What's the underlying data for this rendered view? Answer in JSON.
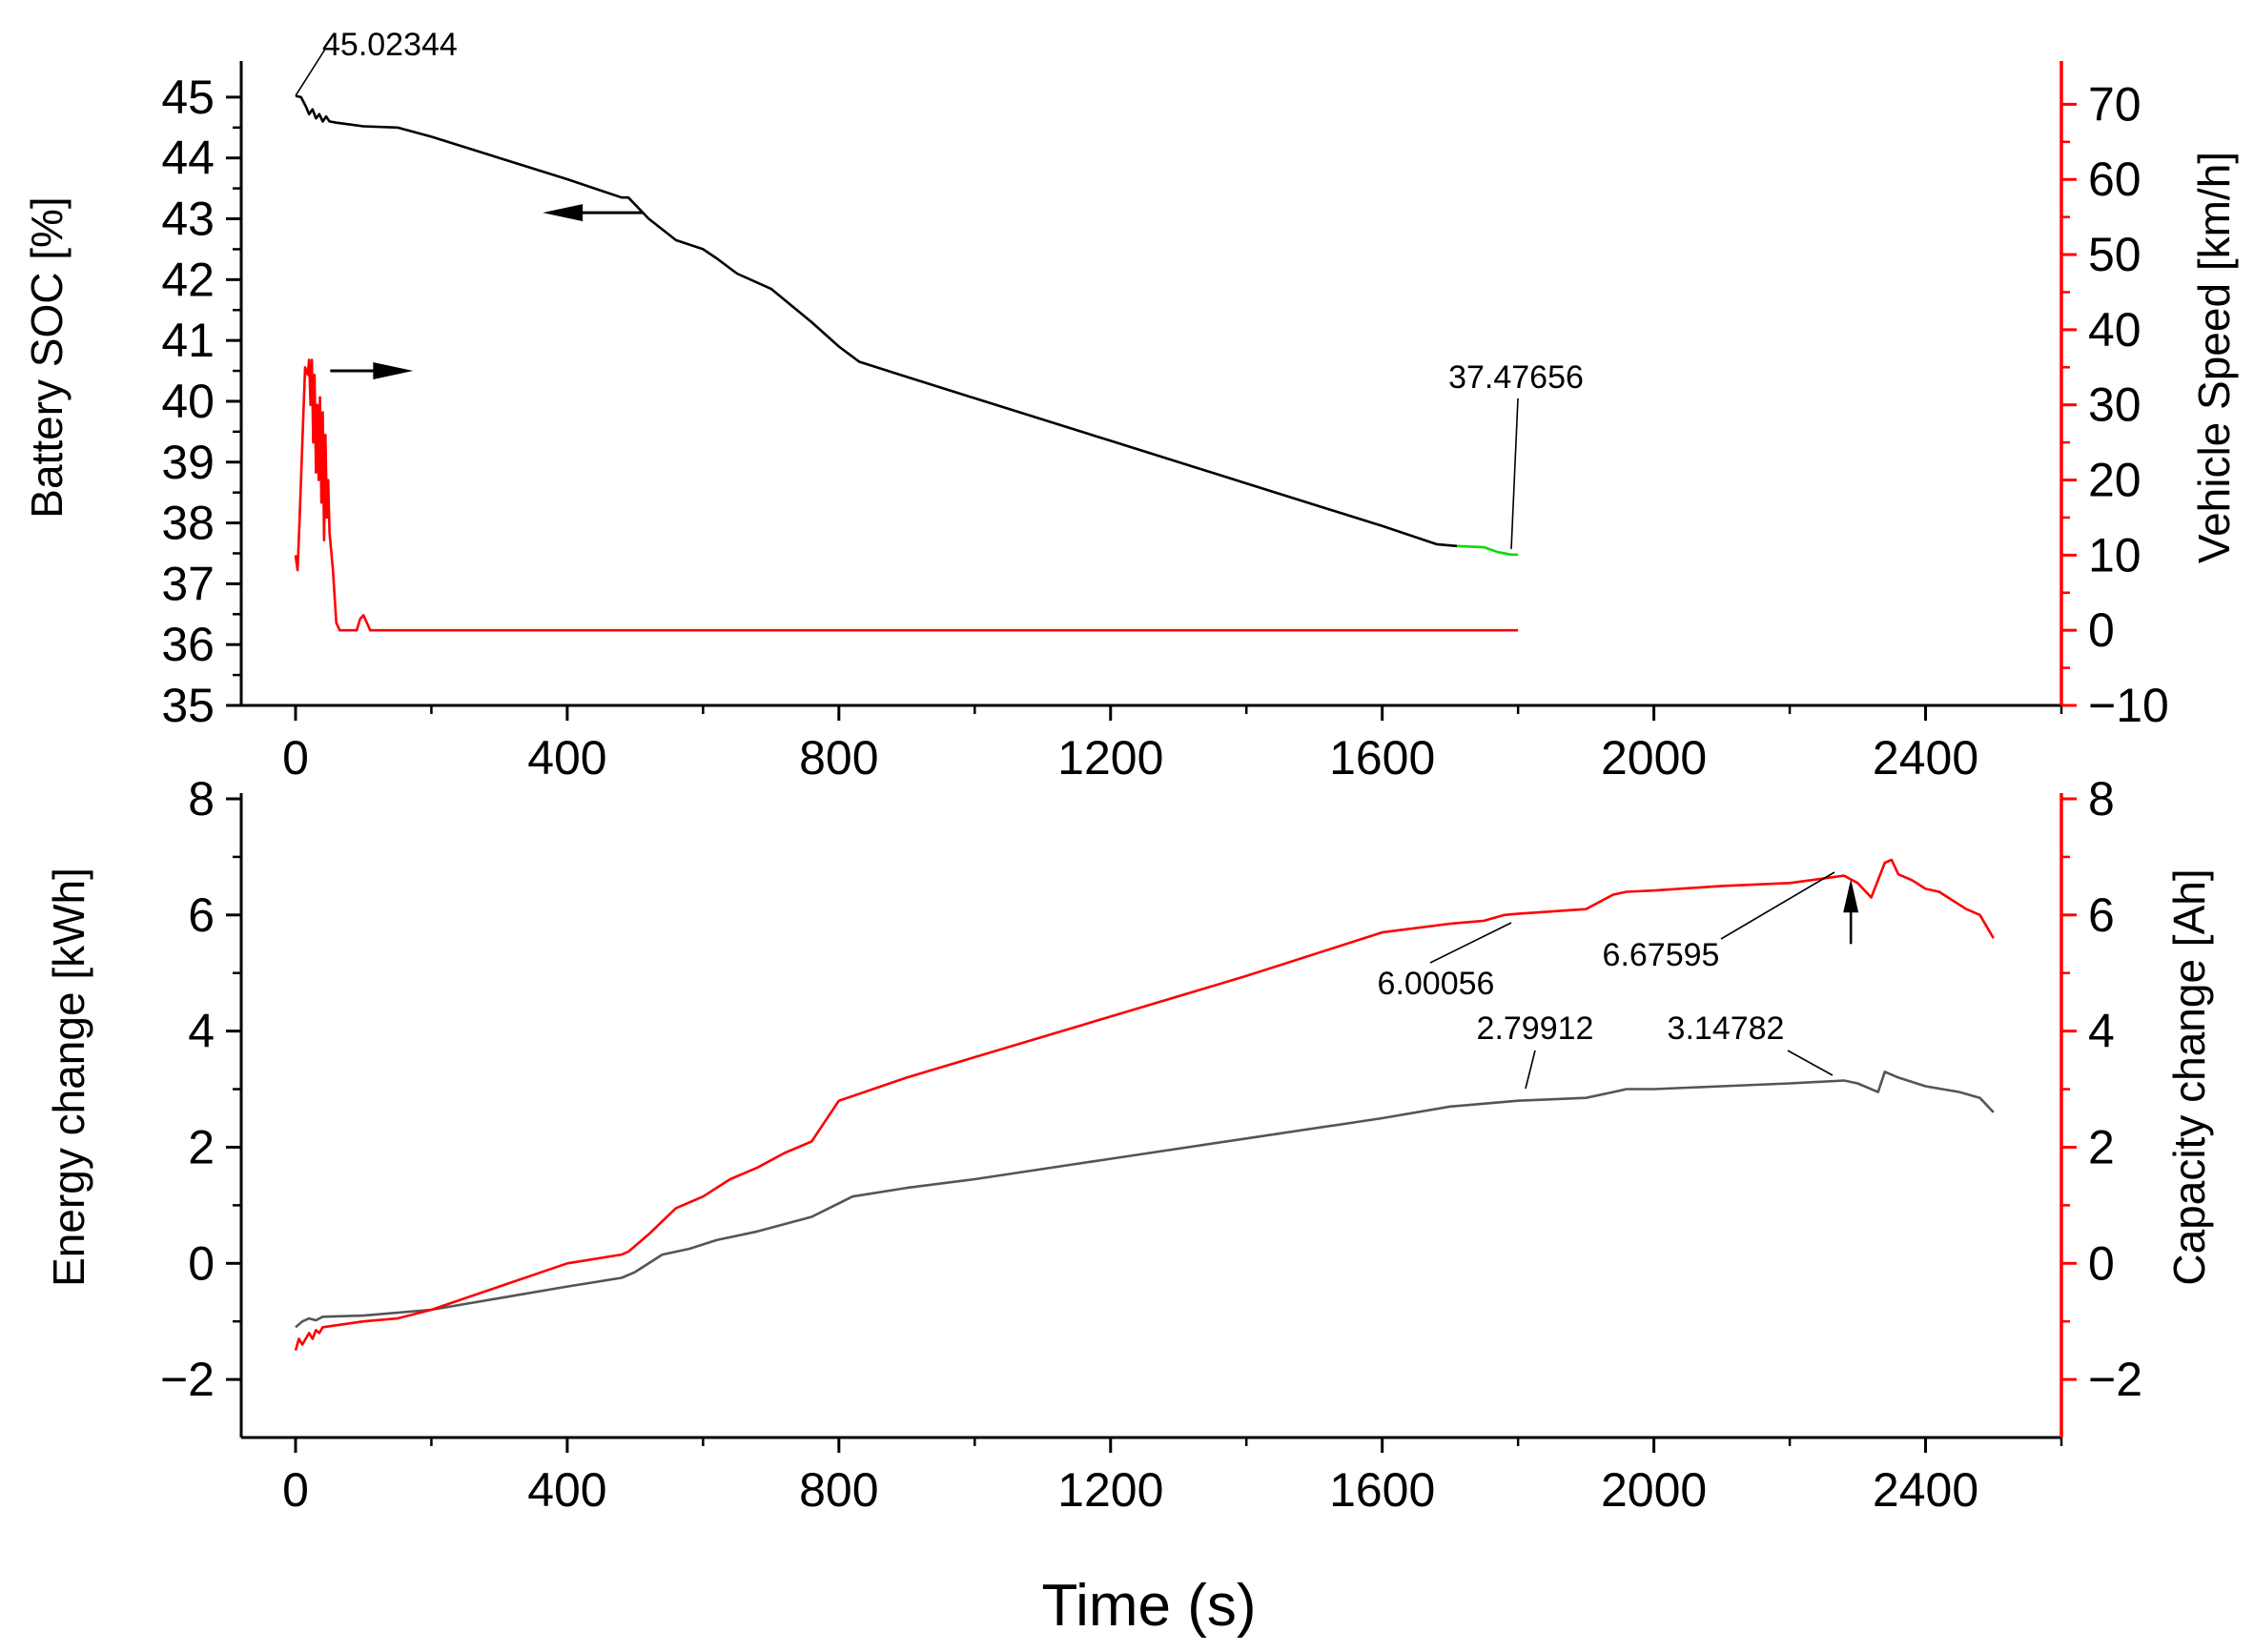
{
  "chart_data": [
    {
      "type": "line",
      "panel": "top",
      "xlabel": "",
      "ylabel_left": "Battery SOC [%]",
      "ylabel_right": "Vehicle Speed [km/h]",
      "xlim": [
        -80,
        2600
      ],
      "x_ticks": [
        0,
        400,
        800,
        1200,
        1600,
        2000,
        2400
      ],
      "x_tick_labels": [
        "0",
        "400",
        "800",
        "1200",
        "1600",
        "2000",
        "2400"
      ],
      "ylim_left": [
        35,
        45.5
      ],
      "y_ticks_left": [
        35,
        36,
        37,
        38,
        39,
        40,
        41,
        42,
        43,
        44,
        45
      ],
      "y_tick_labels_left": [
        "35",
        "36",
        "37",
        "38",
        "39",
        "40",
        "41",
        "42",
        "43",
        "44",
        "45"
      ],
      "ylim_right": [
        -10,
        75
      ],
      "y_ticks_right": [
        -10,
        0,
        10,
        20,
        30,
        40,
        50,
        60,
        70
      ],
      "y_tick_labels_right": [
        "−10",
        "0",
        "10",
        "20",
        "30",
        "40",
        "50",
        "60",
        "70"
      ],
      "colors": {
        "left_axis": "#000000",
        "right_axis": "#ff0000",
        "highlight": "#00e000"
      },
      "series": [
        {
          "name": "Battery SOC",
          "axis": "left",
          "color": "#000000",
          "x": [
            0,
            8,
            15,
            20,
            25,
            30,
            35,
            40,
            45,
            50,
            60,
            80,
            100,
            150,
            200,
            300,
            400,
            480,
            490,
            520,
            560,
            600,
            620,
            650,
            700,
            760,
            800,
            830,
            900,
            1000,
            1200,
            1400,
            1600,
            1680,
            1710
          ],
          "y": [
            45.02,
            45.0,
            44.85,
            44.72,
            44.8,
            44.65,
            44.72,
            44.6,
            44.68,
            44.6,
            44.58,
            44.55,
            44.52,
            44.5,
            44.35,
            44.0,
            43.65,
            43.35,
            43.35,
            43.0,
            42.65,
            42.5,
            42.35,
            42.1,
            41.85,
            41.3,
            40.9,
            40.65,
            40.4,
            40.05,
            39.35,
            38.65,
            37.95,
            37.65,
            37.62
          ]
        },
        {
          "name": "Battery SOC (end)",
          "axis": "left",
          "color": "#00e000",
          "x": [
            1710,
            1750,
            1770,
            1790,
            1800
          ],
          "y": [
            37.62,
            37.6,
            37.52,
            37.48,
            37.48
          ]
        },
        {
          "name": "Vehicle Speed",
          "axis": "right",
          "color": "#ff0000",
          "x": [
            0,
            3,
            6,
            10,
            14,
            18,
            20,
            22,
            24,
            26,
            28,
            30,
            32,
            34,
            36,
            38,
            40,
            42,
            44,
            46,
            48,
            50,
            55,
            60,
            65,
            70,
            80,
            90,
            95,
            100,
            105,
            110,
            120,
            200,
            400,
            800,
            1200,
            1600,
            1800
          ],
          "y": [
            10,
            8,
            15,
            25,
            35,
            34,
            36,
            30,
            36,
            25,
            34,
            21,
            30,
            20,
            31,
            17,
            29,
            12,
            26,
            15,
            20,
            13,
            8,
            1,
            0,
            0,
            0,
            0,
            1.5,
            2,
            1,
            0,
            0,
            0,
            0,
            0,
            0,
            0,
            0
          ]
        }
      ],
      "annotations": [
        {
          "text": "45.02344",
          "x": 0,
          "y": 45.02344
        },
        {
          "text": "37.47656",
          "x": 1790,
          "y": 37.47656
        }
      ],
      "arrows": [
        {
          "direction": "left",
          "points_to_axis": "left",
          "x": 420,
          "y": 43.1
        },
        {
          "direction": "right",
          "points_to_axis": "right",
          "x": 110,
          "y": 35
        }
      ]
    },
    {
      "type": "line",
      "panel": "bottom",
      "xlabel": "Time (s)",
      "ylabel_left": "Energy change [kWh]",
      "ylabel_right": "Capacity change [Ah]",
      "xlim": [
        -80,
        2600
      ],
      "x_ticks": [
        0,
        400,
        800,
        1200,
        1600,
        2000,
        2400
      ],
      "x_tick_labels": [
        "0",
        "400",
        "800",
        "1200",
        "1600",
        "2000",
        "2400"
      ],
      "ylim_left": [
        -3,
        8
      ],
      "y_ticks_left": [
        -2,
        0,
        2,
        4,
        6,
        8
      ],
      "y_tick_labels_left": [
        "−2",
        "0",
        "2",
        "4",
        "6",
        "8"
      ],
      "ylim_right": [
        -3,
        8
      ],
      "y_ticks_right": [
        -2,
        0,
        2,
        4,
        6,
        8
      ],
      "y_tick_labels_right": [
        "−2",
        "0",
        "2",
        "4",
        "6",
        "8"
      ],
      "colors": {
        "left_axis": "#000000",
        "right_axis": "#ff0000"
      },
      "series": [
        {
          "name": "Energy change",
          "axis": "left",
          "color": "#555555",
          "x": [
            0,
            10,
            20,
            30,
            40,
            100,
            200,
            300,
            400,
            480,
            500,
            540,
            580,
            620,
            680,
            760,
            820,
            900,
            1000,
            1200,
            1400,
            1600,
            1700,
            1800,
            1900,
            1940,
            1960,
            2000,
            2100,
            2200,
            2280,
            2300,
            2330,
            2340,
            2360,
            2400,
            2450,
            2480,
            2500
          ],
          "y": [
            -1.1,
            -1.0,
            -0.95,
            -0.98,
            -0.92,
            -0.9,
            -0.8,
            -0.6,
            -0.4,
            -0.25,
            -0.15,
            0.15,
            0.25,
            0.4,
            0.55,
            0.8,
            1.15,
            1.3,
            1.45,
            1.8,
            2.15,
            2.5,
            2.7,
            2.8,
            2.85,
            2.95,
            3.0,
            3.0,
            3.05,
            3.1,
            3.14782,
            3.1,
            2.95,
            3.3,
            3.2,
            3.05,
            2.95,
            2.85,
            2.6
          ]
        },
        {
          "name": "Capacity change",
          "axis": "right",
          "color": "#ff0000",
          "x": [
            0,
            5,
            10,
            20,
            25,
            30,
            35,
            40,
            100,
            150,
            200,
            300,
            400,
            480,
            490,
            520,
            560,
            600,
            640,
            680,
            720,
            760,
            800,
            900,
            1000,
            1200,
            1400,
            1600,
            1700,
            1750,
            1780,
            1800,
            1900,
            1940,
            1960,
            2000,
            2100,
            2200,
            2280,
            2300,
            2320,
            2340,
            2350,
            2360,
            2380,
            2400,
            2420,
            2440,
            2460,
            2480,
            2500
          ],
          "y": [
            -1.5,
            -1.3,
            -1.4,
            -1.2,
            -1.3,
            -1.15,
            -1.2,
            -1.1,
            -1.0,
            -0.95,
            -0.8,
            -0.4,
            0.0,
            0.15,
            0.2,
            0.5,
            0.95,
            1.15,
            1.45,
            1.65,
            1.9,
            2.1,
            2.8,
            3.2,
            3.55,
            4.25,
            4.95,
            5.7,
            5.85,
            5.9,
            6.0,
            6.02,
            6.1,
            6.35,
            6.4,
            6.42,
            6.5,
            6.55,
            6.67595,
            6.55,
            6.3,
            6.9,
            6.95,
            6.7,
            6.6,
            6.45,
            6.4,
            6.25,
            6.1,
            6.0,
            5.6
          ]
        }
      ],
      "annotations": [
        {
          "text": "6.00056",
          "x": 1780,
          "y": 6.00056
        },
        {
          "text": "6.67595",
          "x": 2280,
          "y": 6.67595
        },
        {
          "text": "2.79912",
          "x": 1800,
          "y": 2.79912
        },
        {
          "text": "3.14782",
          "x": 2280,
          "y": 3.14782
        }
      ],
      "arrows": [
        {
          "direction": "up",
          "x": 2290,
          "y": 5.5
        }
      ]
    }
  ]
}
